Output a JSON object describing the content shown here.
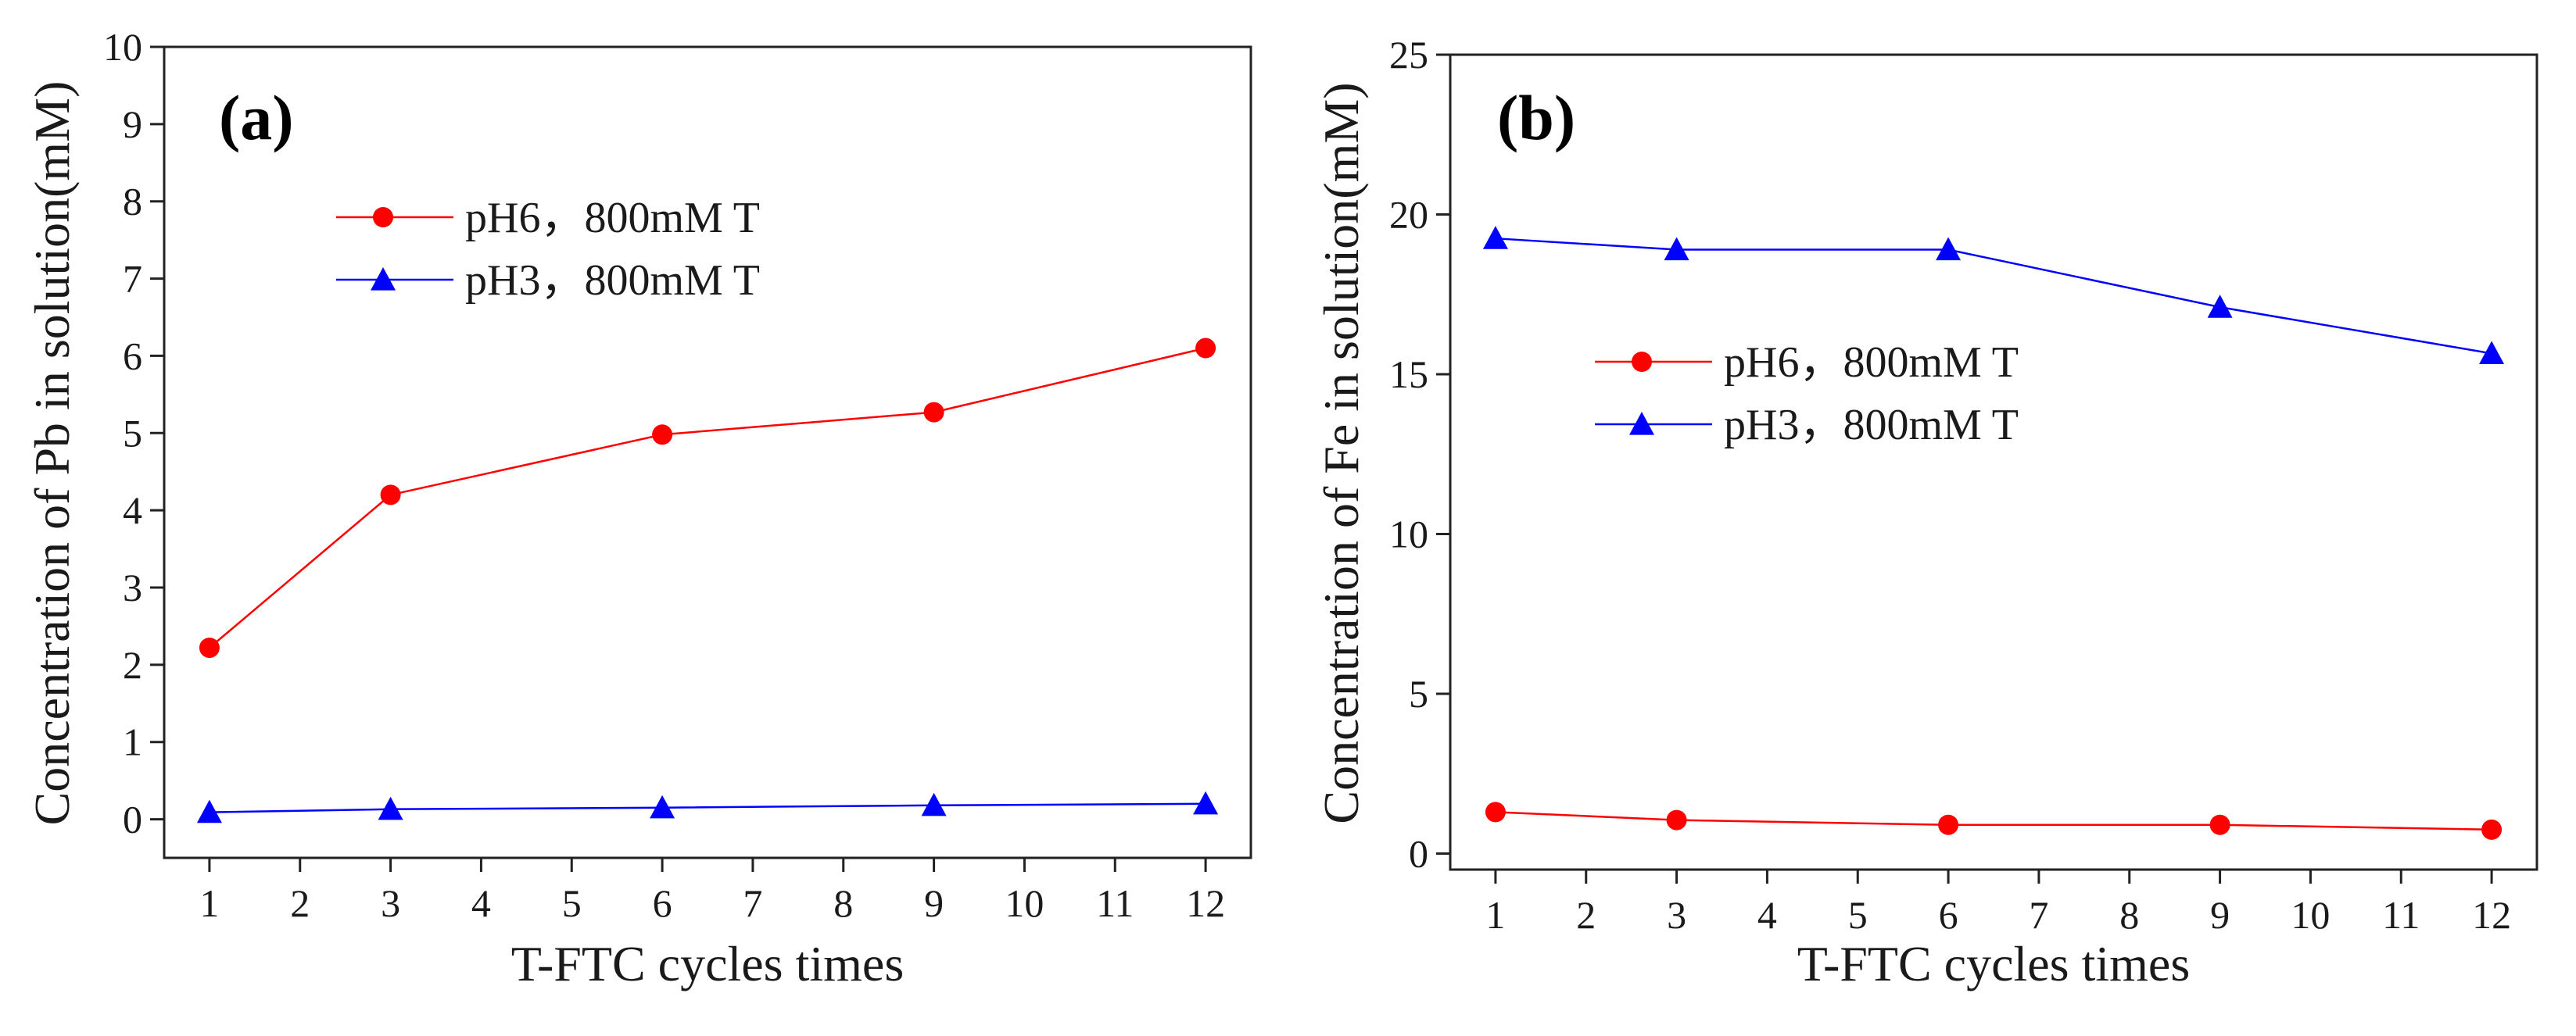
{
  "chart_data": [
    {
      "type": "line",
      "panel_label": "(a)",
      "xlabel": "T-FTC cycles times",
      "ylabel": "Concentration of Pb in solution(mM)",
      "xlim": [
        0.5,
        12.5
      ],
      "ylim": [
        -0.5,
        10
      ],
      "xticks": [
        1,
        2,
        3,
        4,
        5,
        6,
        7,
        8,
        9,
        10,
        11,
        12
      ],
      "yticks": [
        0,
        1,
        2,
        3,
        4,
        5,
        6,
        7,
        8,
        9,
        10
      ],
      "grid": false,
      "legend_position": "top-left",
      "x": [
        1,
        3,
        6,
        9,
        12
      ],
      "series": [
        {
          "name": "pH6，800mM T",
          "color": "#ff0000",
          "marker": "circle",
          "values": [
            2.22,
            4.2,
            4.98,
            5.27,
            6.1
          ]
        },
        {
          "name": "pH3，800mM T",
          "color": "#0000ff",
          "marker": "triangle",
          "values": [
            0.09,
            0.13,
            0.15,
            0.18,
            0.2
          ]
        }
      ]
    },
    {
      "type": "line",
      "panel_label": "(b)",
      "xlabel": "T-FTC cycles times",
      "ylabel": "Concentration of Fe in solution(mM)",
      "xlim": [
        0.5,
        12.5
      ],
      "ylim": [
        -0.5,
        25
      ],
      "xticks": [
        1,
        2,
        3,
        4,
        5,
        6,
        7,
        8,
        9,
        10,
        11,
        12
      ],
      "yticks": [
        0,
        5,
        10,
        15,
        20,
        25
      ],
      "grid": false,
      "legend_position": "center-left",
      "x": [
        1,
        3,
        6,
        9,
        12
      ],
      "series": [
        {
          "name": "pH6，800mM T",
          "color": "#ff0000",
          "marker": "circle",
          "values": [
            1.3,
            1.05,
            0.9,
            0.9,
            0.75
          ]
        },
        {
          "name": "pH3，800mM T",
          "color": "#0000ff",
          "marker": "triangle",
          "values": [
            19.25,
            18.9,
            18.9,
            17.1,
            15.65
          ]
        }
      ]
    }
  ]
}
